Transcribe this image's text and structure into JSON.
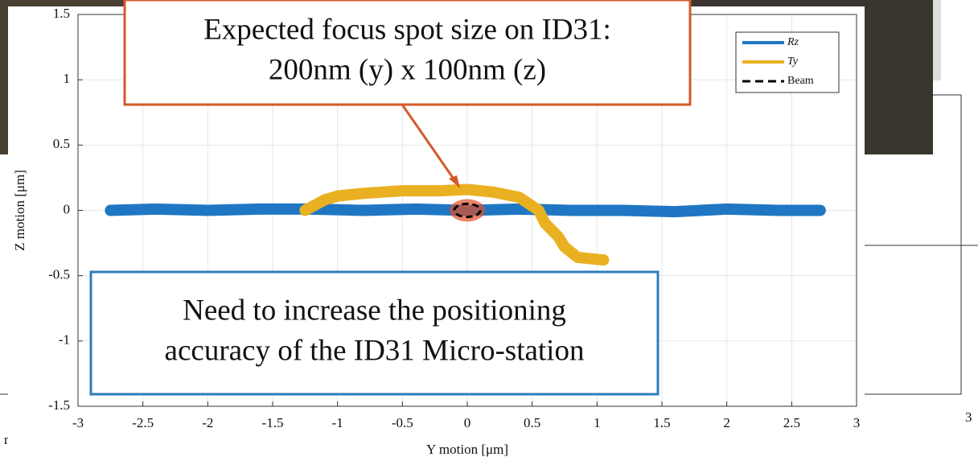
{
  "chart_data": {
    "type": "line",
    "x_label": "Y motion [μm]",
    "y_label": "Z motion [μm]",
    "xlim": [
      -3,
      3
    ],
    "ylim": [
      -1.5,
      1.5
    ],
    "xticks": [
      -3,
      -2.5,
      -2,
      -1.5,
      -1,
      -0.5,
      0,
      0.5,
      1,
      1.5,
      2,
      2.5,
      3
    ],
    "yticks": [
      -1.5,
      -1,
      -0.5,
      0,
      0.5,
      1,
      1.5
    ],
    "grid": true,
    "legend": "upper right",
    "series": [
      {
        "name": "Rz",
        "color": "#1f77c4",
        "x": [
          -2.75,
          -2.4,
          -2.0,
          -1.6,
          -1.2,
          -0.8,
          -0.4,
          0,
          0.4,
          0.8,
          1.2,
          1.6,
          2.0,
          2.4,
          2.72
        ],
        "values": [
          0,
          0.01,
          0,
          0.01,
          0.01,
          0.0,
          0.01,
          0.0,
          0.01,
          0.0,
          0.0,
          -0.01,
          0.01,
          0.0,
          0.0
        ]
      },
      {
        "name": "Ty",
        "color": "#e9b021",
        "x": [
          -1.25,
          -1.1,
          -1.0,
          -0.8,
          -0.5,
          -0.2,
          0,
          0.2,
          0.4,
          0.55,
          0.6,
          0.7,
          0.75,
          0.85,
          1.05
        ],
        "values": [
          0.0,
          0.08,
          0.11,
          0.13,
          0.15,
          0.15,
          0.16,
          0.14,
          0.1,
          0.0,
          -0.1,
          -0.2,
          -0.28,
          -0.36,
          -0.38
        ]
      }
    ],
    "beam": {
      "name": "Beam",
      "center": [
        0,
        0
      ],
      "width": 0.2,
      "height": 0.1,
      "color": "#000000"
    },
    "annotations": [
      {
        "lines": [
          "Expected focus spot size on ID31:",
          "200nm (y) x 100nm (z)"
        ],
        "color": "#d4592a"
      },
      {
        "lines": [
          "Need to increase the positioning",
          "accuracy of the ID31 Micro-station"
        ],
        "color": "#2e7db8"
      }
    ],
    "background_texts": [
      "3",
      "r"
    ]
  }
}
